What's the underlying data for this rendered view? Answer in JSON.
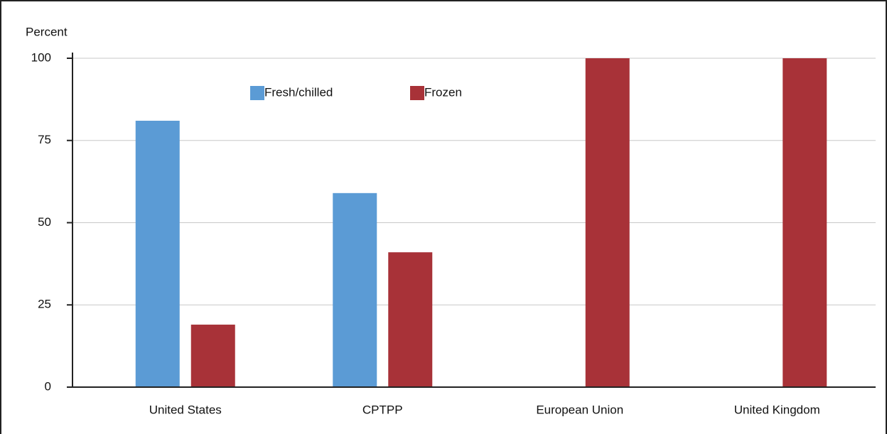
{
  "chart_data": {
    "type": "bar",
    "y_label": "Percent",
    "categories": [
      "United States",
      "CPTPP",
      "European Union",
      "United Kingdom"
    ],
    "series": [
      {
        "name": "Fresh/chilled",
        "color": "#5b9bd5",
        "values": [
          81,
          59,
          0,
          0
        ]
      },
      {
        "name": "Frozen",
        "color": "#a83238",
        "values": [
          19,
          41,
          100,
          100
        ]
      }
    ],
    "ylim": [
      0,
      100
    ],
    "yticks": [
      0,
      25,
      50,
      75,
      100
    ],
    "grid": true,
    "legend": "top"
  }
}
